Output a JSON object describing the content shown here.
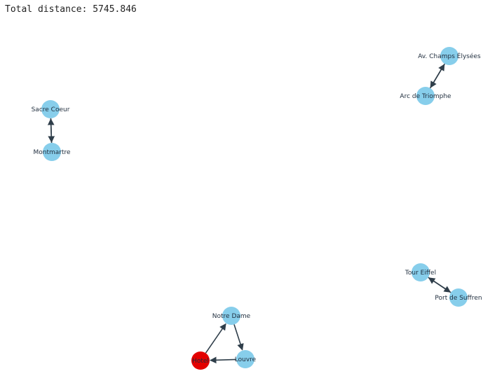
{
  "header": {
    "label": "Total distance:",
    "value": "5745.846"
  },
  "graph": {
    "colors": {
      "node": "#87CEEB",
      "start_node": "#E30000",
      "edge": "#2F3E4A",
      "label": "#1F2D3D"
    },
    "nodes": [
      {
        "id": "sacre_coeur",
        "label": "Sacre Coeur",
        "start": false
      },
      {
        "id": "montmartre",
        "label": "Montmartre",
        "start": false
      },
      {
        "id": "av_champs",
        "label": "Av. Champs Élysées",
        "start": false
      },
      {
        "id": "arc_triomphe",
        "label": "Arc de Triomphe",
        "start": false
      },
      {
        "id": "tour_eiffel",
        "label": "Tour Eiffel",
        "start": false
      },
      {
        "id": "port_suffren",
        "label": "Port de Suffren",
        "start": false
      },
      {
        "id": "notre_dame",
        "label": "Notre Dame",
        "start": false
      },
      {
        "id": "louvre",
        "label": "Louvre",
        "start": false
      },
      {
        "id": "hotel",
        "label": "Hotel",
        "start": true
      }
    ],
    "edges": [
      {
        "from": "sacre_coeur",
        "to": "montmartre"
      },
      {
        "from": "montmartre",
        "to": "sacre_coeur"
      },
      {
        "from": "av_champs",
        "to": "arc_triomphe"
      },
      {
        "from": "arc_triomphe",
        "to": "av_champs"
      },
      {
        "from": "tour_eiffel",
        "to": "port_suffren"
      },
      {
        "from": "port_suffren",
        "to": "tour_eiffel"
      },
      {
        "from": "hotel",
        "to": "notre_dame"
      },
      {
        "from": "notre_dame",
        "to": "louvre"
      },
      {
        "from": "louvre",
        "to": "hotel"
      }
    ]
  }
}
